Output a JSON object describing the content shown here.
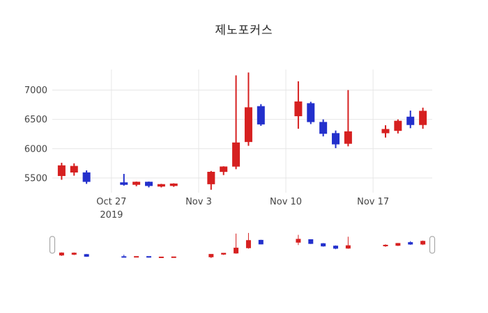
{
  "chart_data": {
    "type": "candlestick",
    "title": "제노포커스",
    "xlabel": "",
    "ylabel": "",
    "increasing_color": "#d62020",
    "decreasing_color": "#2330cc",
    "grid": true,
    "legend": "none",
    "x_domain": [
      "2019-10-22T06:00",
      "2019-11-21T18:00"
    ],
    "y_domain": [
      5250,
      7350
    ],
    "y_ticks": [
      5500,
      6000,
      6500,
      7000
    ],
    "x_ticks": [
      {
        "date": "2019-10-27",
        "label": "Oct 27",
        "sublabel": "2019"
      },
      {
        "date": "2019-11-03",
        "label": "Nov 3",
        "sublabel": ""
      },
      {
        "date": "2019-11-10",
        "label": "Nov 10",
        "sublabel": ""
      },
      {
        "date": "2019-11-17",
        "label": "Nov 17",
        "sublabel": ""
      }
    ],
    "rangeslider": true,
    "candles": [
      {
        "date": "2019-10-23",
        "open": 5540,
        "high": 5760,
        "low": 5470,
        "close": 5710
      },
      {
        "date": "2019-10-24",
        "open": 5600,
        "high": 5750,
        "low": 5540,
        "close": 5700
      },
      {
        "date": "2019-10-25",
        "open": 5590,
        "high": 5630,
        "low": 5400,
        "close": 5440
      },
      {
        "date": "2019-10-28",
        "open": 5420,
        "high": 5570,
        "low": 5370,
        "close": 5390
      },
      {
        "date": "2019-10-29",
        "open": 5390,
        "high": 5440,
        "low": 5360,
        "close": 5430
      },
      {
        "date": "2019-10-30",
        "open": 5430,
        "high": 5440,
        "low": 5340,
        "close": 5370
      },
      {
        "date": "2019-10-31",
        "open": 5360,
        "high": 5400,
        "low": 5340,
        "close": 5390
      },
      {
        "date": "2019-11-01",
        "open": 5370,
        "high": 5410,
        "low": 5350,
        "close": 5400
      },
      {
        "date": "2019-11-04",
        "open": 5400,
        "high": 5620,
        "low": 5300,
        "close": 5600
      },
      {
        "date": "2019-11-05",
        "open": 5610,
        "high": 5700,
        "low": 5550,
        "close": 5690
      },
      {
        "date": "2019-11-06",
        "open": 5700,
        "high": 7250,
        "low": 5650,
        "close": 6100
      },
      {
        "date": "2019-11-07",
        "open": 6120,
        "high": 7300,
        "low": 6050,
        "close": 6700
      },
      {
        "date": "2019-11-08",
        "open": 6720,
        "high": 6760,
        "low": 6390,
        "close": 6420
      },
      {
        "date": "2019-11-11",
        "open": 6560,
        "high": 7150,
        "low": 6340,
        "close": 6800
      },
      {
        "date": "2019-11-12",
        "open": 6770,
        "high": 6800,
        "low": 6420,
        "close": 6460
      },
      {
        "date": "2019-11-13",
        "open": 6450,
        "high": 6500,
        "low": 6210,
        "close": 6260
      },
      {
        "date": "2019-11-14",
        "open": 6260,
        "high": 6310,
        "low": 6010,
        "close": 6080
      },
      {
        "date": "2019-11-15",
        "open": 6090,
        "high": 7000,
        "low": 6040,
        "close": 6290
      },
      {
        "date": "2019-11-18",
        "open": 6270,
        "high": 6400,
        "low": 6190,
        "close": 6330
      },
      {
        "date": "2019-11-19",
        "open": 6310,
        "high": 6500,
        "low": 6260,
        "close": 6470
      },
      {
        "date": "2019-11-20",
        "open": 6540,
        "high": 6650,
        "low": 6350,
        "close": 6410
      },
      {
        "date": "2019-11-21",
        "open": 6410,
        "high": 6700,
        "low": 6340,
        "close": 6640
      }
    ]
  }
}
